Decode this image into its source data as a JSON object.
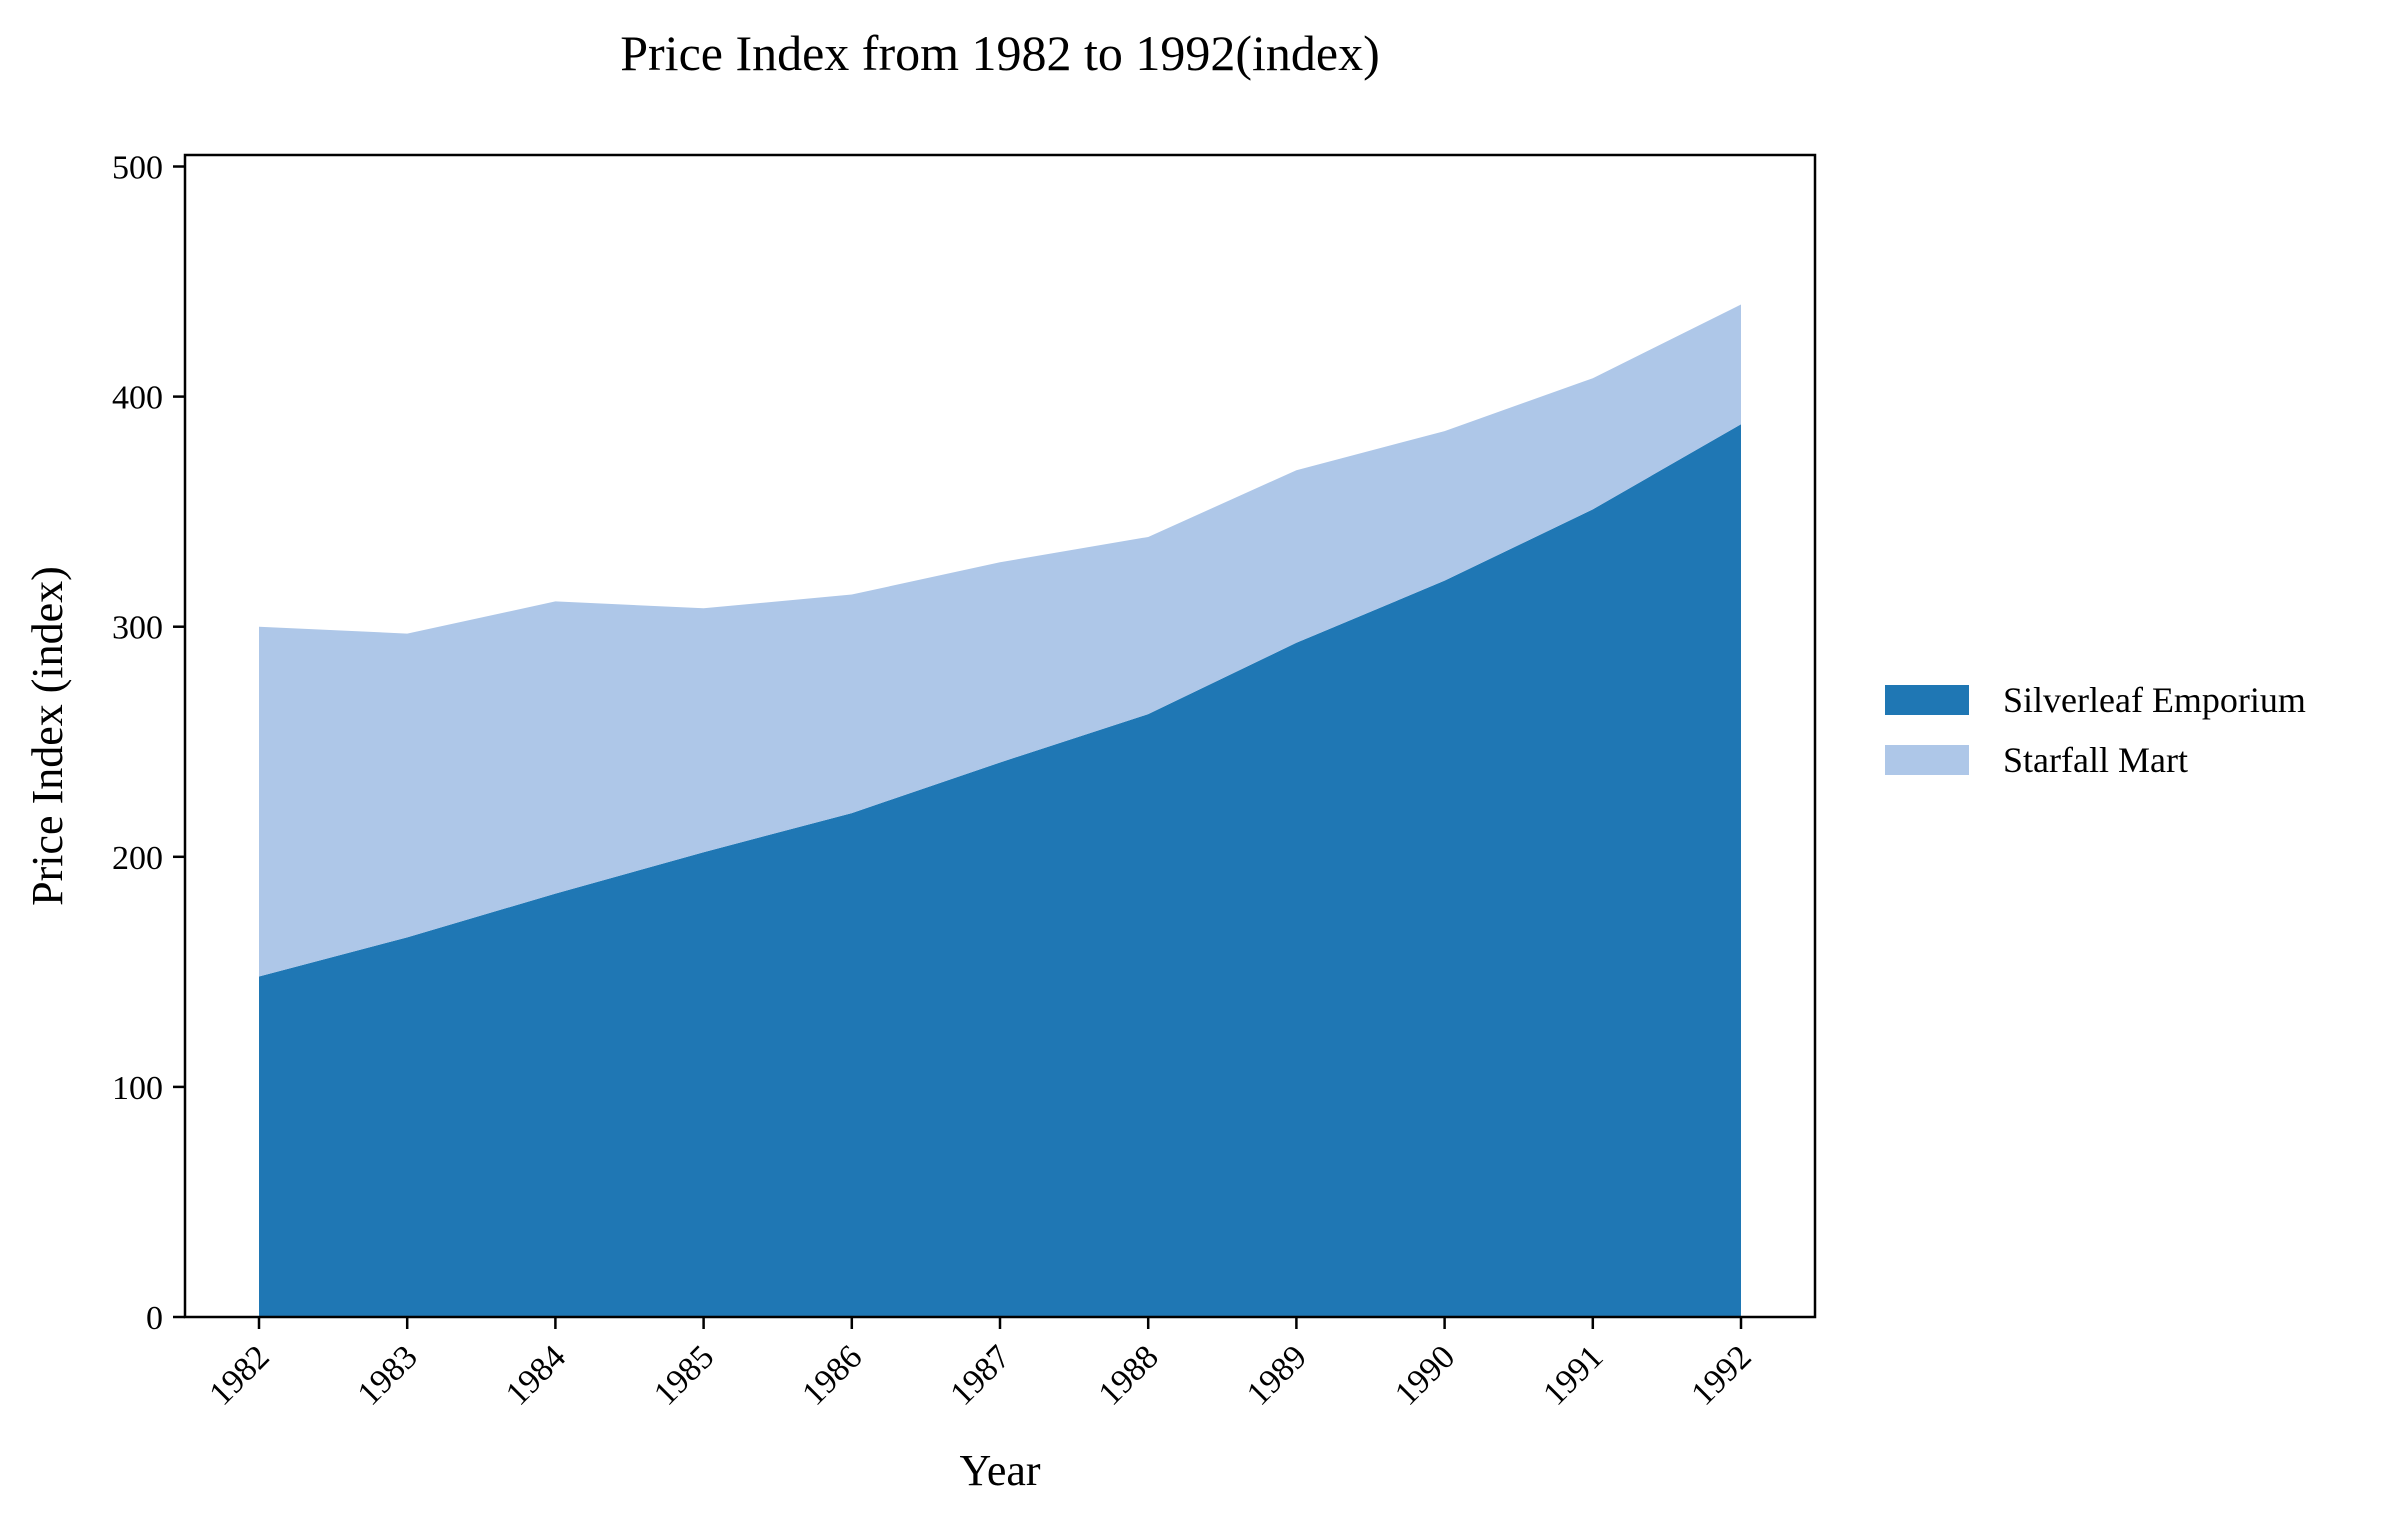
{
  "chart_data": {
    "type": "area",
    "stacked": true,
    "title": "Price Index from 1982 to 1992(index)",
    "xlabel": "Year",
    "ylabel": "Price Index (index)",
    "categories": [
      "1982",
      "1983",
      "1984",
      "1985",
      "1986",
      "1987",
      "1988",
      "1989",
      "1990",
      "1991",
      "1992"
    ],
    "series": [
      {
        "name": "Silverleaf Emporium",
        "color": "#1f77b4",
        "values": [
          148,
          165,
          184,
          202,
          219,
          241,
          262,
          293,
          320,
          351,
          388
        ]
      },
      {
        "name": "Starfall Mart",
        "color": "#aec7e8",
        "values": [
          152,
          132,
          127,
          106,
          95,
          87,
          77,
          75,
          65,
          57,
          52
        ]
      }
    ],
    "ylim": [
      0,
      505
    ],
    "yticks": [
      0,
      100,
      200,
      300,
      400,
      500
    ],
    "grid": false,
    "legend_position": "right"
  }
}
